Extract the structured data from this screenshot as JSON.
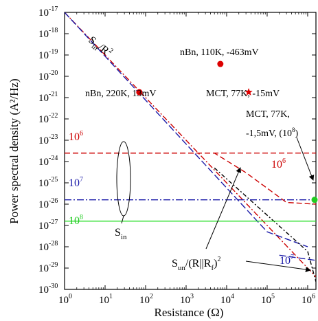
{
  "chart_data": {
    "type": "line",
    "xlabel": "Resistance (Ω)",
    "ylabel": "Power spectral density (A²/Hz)",
    "x_scale": "log",
    "y_scale": "log",
    "xlim": [
      1,
      1600000
    ],
    "ylim": [
      1e-30,
      1e-17
    ],
    "x_ticks": [
      {
        "base": "10",
        "exp": "0",
        "value": 1
      },
      {
        "base": "10",
        "exp": "1",
        "value": 10
      },
      {
        "base": "10",
        "exp": "2",
        "value": 100
      },
      {
        "base": "10",
        "exp": "3",
        "value": 1000
      },
      {
        "base": "10",
        "exp": "4",
        "value": 10000
      },
      {
        "base": "10",
        "exp": "5",
        "value": 100000
      },
      {
        "base": "10",
        "exp": "6",
        "value": 1000000
      }
    ],
    "y_ticks": [
      {
        "base": "10",
        "exp": "-17",
        "value": 1e-17
      },
      {
        "base": "10",
        "exp": "-18",
        "value": 1e-18
      },
      {
        "base": "10",
        "exp": "-19",
        "value": 1e-19
      },
      {
        "base": "10",
        "exp": "-20",
        "value": 1e-20
      },
      {
        "base": "10",
        "exp": "-21",
        "value": 1e-21
      },
      {
        "base": "10",
        "exp": "-22",
        "value": 1e-22
      },
      {
        "base": "10",
        "exp": "-23",
        "value": 1e-23
      },
      {
        "base": "10",
        "exp": "-24",
        "value": 1e-24
      },
      {
        "base": "10",
        "exp": "-25",
        "value": 1e-25
      },
      {
        "base": "10",
        "exp": "-26",
        "value": 1e-26
      },
      {
        "base": "10",
        "exp": "-27",
        "value": 1e-27
      },
      {
        "base": "10",
        "exp": "-28",
        "value": 1e-28
      },
      {
        "base": "10",
        "exp": "-29",
        "value": 1e-29
      },
      {
        "base": "10",
        "exp": "-30",
        "value": 1e-30
      }
    ],
    "series": [
      {
        "name": "S_in/R²",
        "color": "#cc0000",
        "dash": "8,3,2,3",
        "x": [
          1,
          1600000
        ],
        "y": [
          1e-17,
          3.9e-30
        ]
      },
      {
        "name": "S_un/(R||R_f)², 10⁶",
        "color": "#1a1aa8",
        "dash": "10,4",
        "x": [
          1,
          100000,
          1000000
        ],
        "y": [
          1e-17,
          5e-28,
          1e-28
        ]
      },
      {
        "name": "",
        "color": "#000000",
        "dash": "6,3,2,3",
        "x": [
          5000,
          1000000,
          1600000
        ],
        "y": [
          5e-25,
          6e-29,
          2.3e-30
        ]
      },
      {
        "name": "",
        "color": "#1a1aa8",
        "dash": "10,4",
        "x": [
          200000,
          1600000
        ],
        "y": [
          4e-29,
          2.3e-29
        ]
      },
      {
        "name": "",
        "color": "#cc0000",
        "dash": "8,4",
        "x": [
          1,
          5000,
          30000,
          300000,
          1600000
        ],
        "y": [
          2.5e-24,
          2.5e-24,
          3e-25,
          1.2e-26,
          1e-26
        ]
      },
      {
        "name": "",
        "color": "#cc0000",
        "dash": "8,4",
        "x": [
          1,
          1600000
        ],
        "y": [
          2.5e-24,
          2.5e-24
        ]
      },
      {
        "name": "",
        "color": "#1a1aa8",
        "dash": "10,3,2,3",
        "x": [
          1,
          1600000
        ],
        "y": [
          1.6e-26,
          1.6e-26
        ]
      },
      {
        "name": "",
        "color": "#22dd22",
        "dash": "",
        "x": [
          1,
          1600000
        ],
        "y": [
          1.6e-27,
          1.6e-27
        ]
      }
    ],
    "points": [
      {
        "label": "nBn, 220K, 13mV",
        "x": 70,
        "y": 1.8e-21,
        "marker": "circle",
        "color": "#dd0000"
      },
      {
        "label": "nBn, 110K, -463mV",
        "x": 7000,
        "y": 3.8e-20,
        "marker": "circle",
        "color": "#dd0000"
      },
      {
        "label": "MCT, 77K, -15mV",
        "x": 35000,
        "y": 1.8e-21,
        "marker": "star",
        "color": "#dd0000"
      },
      {
        "label": "MCT, 77K, -1,5mV, (10⁸)",
        "x": 1600000,
        "y": 1.6e-26,
        "marker": "circle",
        "color": "#22cc22"
      }
    ],
    "annotations": {
      "sin_r2": "S_in/R²",
      "sun_rrf": "S_un/(R||R_f)²",
      "s_in": "S_in",
      "rf_1e6_left": "10⁶",
      "rf_1e6_right": "10⁶",
      "rf_1e7_left": "10⁷",
      "rf_1e7_right": "10⁷",
      "rf_1e8": "10⁸"
    }
  }
}
